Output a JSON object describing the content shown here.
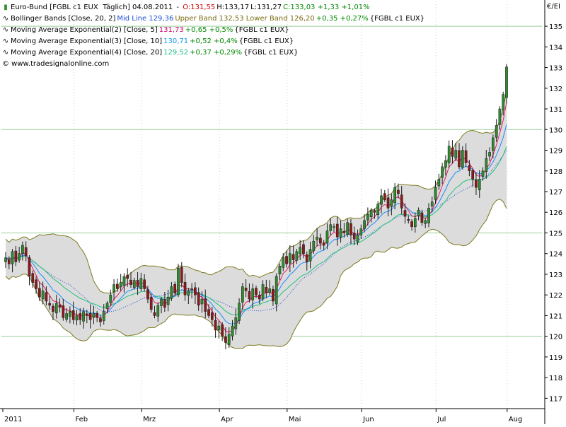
{
  "header": {
    "title": "Euro-Bund [FGBL c1 EUX  Täglich] 04.08.2011",
    "open": "O:131,55",
    "high": "H:133,17",
    "low": "L:131,27",
    "close_change": "C:133,03 +1,33 +1,01%",
    "currency": "€/EI"
  },
  "legend": {
    "bb_label": "Bollinger Bands [Close, 20, 2]",
    "bb_mid": "Mid Line 129,36",
    "bb_upper_lower": "Upper Band 132,53 Lower Band 126,20",
    "bb_change": "+0,35 +0,27%",
    "bb_sym": "{FGBL c1 EUX}",
    "ema2_label": "Moving Average Exponential(2) [Close, 5]",
    "ema2_value": "131,73",
    "ema2_change": "+0,65 +0,5%",
    "ema2_sym": "{FGBL c1 EUX}",
    "ema3_label": "Moving Average Exponential(3) [Close, 10]",
    "ema3_value": "130,71",
    "ema3_change": "+0,52 +0,4%",
    "ema3_sym": "{FGBL c1 EUX}",
    "ema4_label": "Moving Average Exponential(4) [Close, 20]",
    "ema4_value": "129,52",
    "ema4_change": "+0,37 +0,29%",
    "ema4_sym": "{FGBL c1 EUX}",
    "copyright": "© www.tradesignalonline.com"
  },
  "colors": {
    "candle_up": "#2e8b2e",
    "candle_down": "#8b1a1a",
    "band_fill": "#dcdcdc",
    "band_line": "#7d7a1f",
    "ema5": "#e0206a",
    "ema10": "#1a8cff",
    "ema20": "#20c080",
    "midline": "#2244cc",
    "grid": "#9bcf9b"
  },
  "chart_data": {
    "type": "candlestick",
    "title": "Euro-Bund [FGBL c1 EUX  Täglich] 04.08.2011",
    "ylim": [
      116.5,
      136.2
    ],
    "y_ticks": [
      117,
      118,
      119,
      120,
      121,
      122,
      123,
      124,
      125,
      126,
      127,
      128,
      129,
      130,
      131,
      132,
      133,
      134,
      135
    ],
    "y_grid": [
      120,
      125,
      130,
      135
    ],
    "x_labels": [
      "2011",
      "Feb",
      "Mrz",
      "Apr",
      "Mai",
      "Jun",
      "Jul",
      "Aug"
    ],
    "x_label_index": [
      0,
      21,
      41,
      64,
      84,
      106,
      128,
      149
    ],
    "bands_lookback": 20,
    "close": [
      123.8,
      123.5,
      124.1,
      123.6,
      124.0,
      124.4,
      123.9,
      122.9,
      122.6,
      122.3,
      121.9,
      122.2,
      121.7,
      121.5,
      121.2,
      121.6,
      121.4,
      120.9,
      121.1,
      121.2,
      120.8,
      121.0,
      120.8,
      121.2,
      121.0,
      120.8,
      121.1,
      120.9,
      120.7,
      121.2,
      121.6,
      122.0,
      122.5,
      122.3,
      122.6,
      122.9,
      122.8,
      122.5,
      122.7,
      122.4,
      122.8,
      122.3,
      121.8,
      121.3,
      121.0,
      121.5,
      121.8,
      121.4,
      121.9,
      122.4,
      122.1,
      123.3,
      122.6,
      122.0,
      122.2,
      122.3,
      122.0,
      121.5,
      121.8,
      121.2,
      121.0,
      120.8,
      120.3,
      120.5,
      120.0,
      119.7,
      120.1,
      120.5,
      120.9,
      121.6,
      122.4,
      122.2,
      121.8,
      122.3,
      122.0,
      121.8,
      122.5,
      122.1,
      122.3,
      121.7,
      122.9,
      123.4,
      123.8,
      123.5,
      124.0,
      123.7,
      124.1,
      124.3,
      124.0,
      123.6,
      124.2,
      124.6,
      124.8,
      124.5,
      124.4,
      125.1,
      125.4,
      125.3,
      124.8,
      125.2,
      125.0,
      125.5,
      124.9,
      124.7,
      124.9,
      125.2,
      125.6,
      125.9,
      126.1,
      126.0,
      126.4,
      126.8,
      126.6,
      126.2,
      126.6,
      127.2,
      126.9,
      126.2,
      125.8,
      125.6,
      125.3,
      125.7,
      126.1,
      125.5,
      125.6,
      126.2,
      126.5,
      127.2,
      127.6,
      128.2,
      128.5,
      129.2,
      128.7,
      129.0,
      128.2,
      129.0,
      128.4,
      128.0,
      127.6,
      127.2,
      127.6,
      128.0,
      128.6,
      128.9,
      129.6,
      130.2,
      131.0,
      131.7,
      133.03
    ],
    "series": [
      {
        "name": "Mid Line",
        "value": 129.36
      },
      {
        "name": "Upper Band",
        "value": 132.53
      },
      {
        "name": "Lower Band",
        "value": 126.2
      },
      {
        "name": "Moving Average Exponential(2) [Close, 5]",
        "value": 131.73
      },
      {
        "name": "Moving Average Exponential(3) [Close, 10]",
        "value": 130.71
      },
      {
        "name": "Moving Average Exponential(4) [Close, 20]",
        "value": 129.52
      }
    ],
    "last_bar": {
      "open": 131.55,
      "high": 133.17,
      "low": 131.27,
      "close": 133.03
    }
  }
}
